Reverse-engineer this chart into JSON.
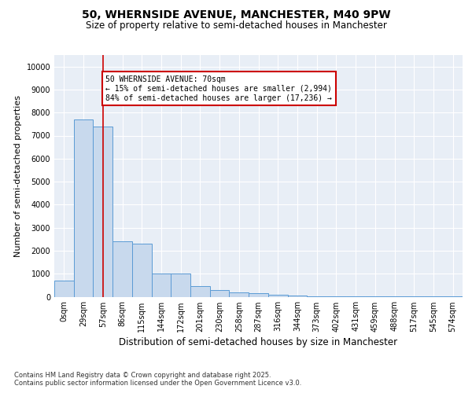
{
  "title_line1": "50, WHERNSIDE AVENUE, MANCHESTER, M40 9PW",
  "title_line2": "Size of property relative to semi-detached houses in Manchester",
  "xlabel": "Distribution of semi-detached houses by size in Manchester",
  "ylabel": "Number of semi-detached properties",
  "bin_labels": [
    "0sqm",
    "29sqm",
    "57sqm",
    "86sqm",
    "115sqm",
    "144sqm",
    "172sqm",
    "201sqm",
    "230sqm",
    "258sqm",
    "287sqm",
    "316sqm",
    "344sqm",
    "373sqm",
    "402sqm",
    "431sqm",
    "459sqm",
    "488sqm",
    "517sqm",
    "545sqm",
    "574sqm"
  ],
  "bar_values": [
    700,
    7700,
    7400,
    2400,
    2300,
    1000,
    1000,
    450,
    300,
    200,
    150,
    100,
    50,
    30,
    20,
    10,
    5,
    5,
    5,
    5,
    5
  ],
  "bar_color": "#c8d9ed",
  "bar_edge_color": "#5b9bd5",
  "property_bin_index": 2,
  "annotation_text": "50 WHERNSIDE AVENUE: 70sqm\n← 15% of semi-detached houses are smaller (2,994)\n84% of semi-detached houses are larger (17,236) →",
  "annotation_box_color": "#ffffff",
  "annotation_box_edge": "#cc0000",
  "vline_color": "#cc0000",
  "footer_text": "Contains HM Land Registry data © Crown copyright and database right 2025.\nContains public sector information licensed under the Open Government Licence v3.0.",
  "ylim": [
    0,
    10500
  ],
  "yticks": [
    0,
    1000,
    2000,
    3000,
    4000,
    5000,
    6000,
    7000,
    8000,
    9000,
    10000
  ],
  "bg_color": "#e8eef6",
  "fig_bg_color": "#ffffff",
  "grid_color": "#ffffff",
  "title1_fontsize": 10,
  "title2_fontsize": 8.5,
  "ylabel_fontsize": 8,
  "xlabel_fontsize": 8.5,
  "tick_fontsize": 7,
  "annotation_fontsize": 7,
  "footer_fontsize": 6
}
